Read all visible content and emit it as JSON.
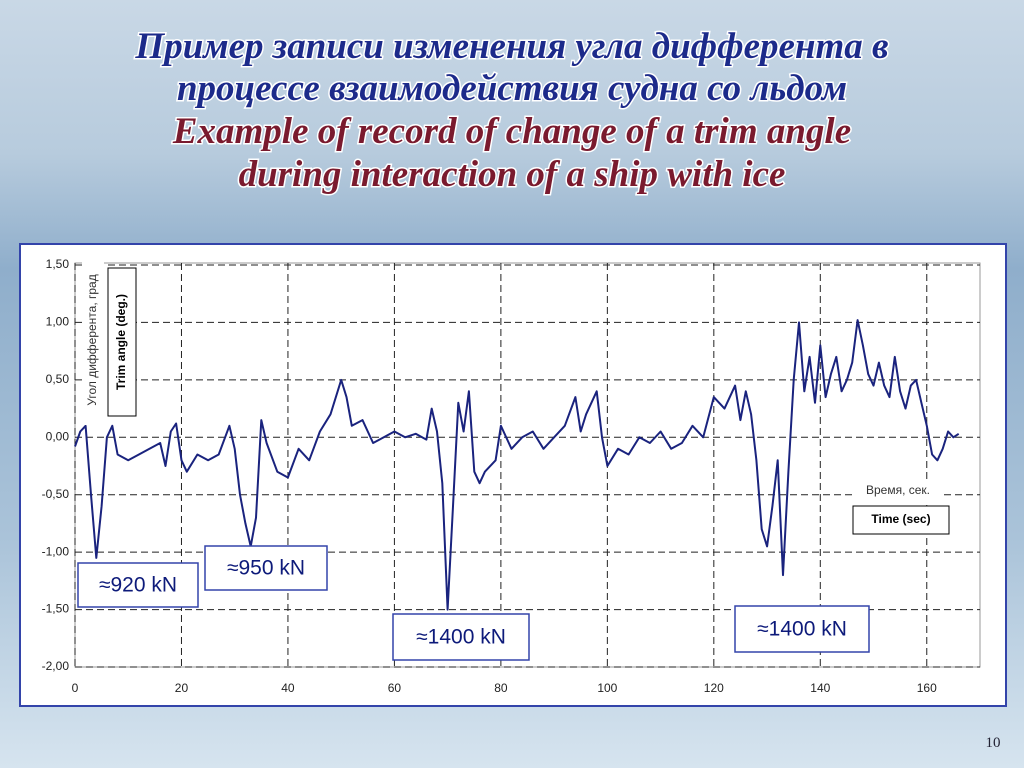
{
  "slide": {
    "title_ru": [
      "Пример записи изменения угла дифферента в",
      "процессе взаимодействия судна со льдом"
    ],
    "title_en": [
      "Example of record of change of a trim angle",
      "during interaction of a ship with ice"
    ],
    "page_number": 10
  },
  "chart_data": {
    "type": "line",
    "y_label_ru": "Угол дифферента, град",
    "y_label_en": "Trim angle (deg.)",
    "x_label_ru": "Время, сек.",
    "x_label_en": "Time (sec)",
    "annotations": [
      "≈920 kN",
      "≈950 kN",
      "≈1400 kN",
      "≈1400 kN"
    ],
    "color": "#1a237e",
    "grid": true,
    "xlim": [
      0,
      170
    ],
    "xticks": [
      0,
      20,
      40,
      60,
      80,
      100,
      120,
      140,
      160
    ],
    "ylim": [
      -2,
      1.5
    ],
    "yticks": [
      {
        "value": 1.5,
        "label": "1,50"
      },
      {
        "value": 1,
        "label": "1,00"
      },
      {
        "value": 0.5,
        "label": "0,50"
      },
      {
        "value": 0,
        "label": "0,00"
      },
      {
        "value": -0.5,
        "label": "-0,50"
      },
      {
        "value": -1,
        "label": "-1,00"
      },
      {
        "value": -1.5,
        "label": "-1,50"
      },
      {
        "value": -2,
        "label": "-2,00"
      }
    ],
    "x": [
      0,
      1,
      2,
      3,
      4,
      5,
      6,
      7,
      8,
      10,
      12,
      14,
      16,
      17,
      18,
      19,
      20,
      21,
      23,
      25,
      27,
      29,
      30,
      31,
      32,
      33,
      34,
      35,
      36,
      38,
      40,
      42,
      44,
      46,
      48,
      50,
      51,
      52,
      54,
      56,
      58,
      60,
      62,
      64,
      66,
      67,
      68,
      69,
      70,
      71,
      72,
      73,
      74,
      75,
      76,
      77,
      79,
      80,
      82,
      84,
      86,
      88,
      90,
      92,
      94,
      95,
      96,
      98,
      99,
      100,
      102,
      104,
      106,
      108,
      110,
      112,
      114,
      116,
      118,
      120,
      122,
      124,
      125,
      126,
      127,
      128,
      129,
      130,
      131,
      132,
      133,
      134,
      135,
      136,
      137,
      138,
      139,
      140,
      141,
      142,
      143,
      144,
      145,
      146,
      147,
      148,
      149,
      150,
      151,
      152,
      153,
      154,
      155,
      156,
      157,
      158,
      159,
      160,
      161,
      162,
      163,
      164,
      165,
      166
    ],
    "values": [
      -0.08,
      0.05,
      0.1,
      -0.5,
      -1.05,
      -0.6,
      0.0,
      0.1,
      -0.15,
      -0.2,
      -0.15,
      -0.1,
      -0.05,
      -0.25,
      0.05,
      0.12,
      -0.2,
      -0.3,
      -0.15,
      -0.2,
      -0.15,
      0.1,
      -0.1,
      -0.5,
      -0.75,
      -0.95,
      -0.7,
      0.15,
      -0.05,
      -0.3,
      -0.35,
      -0.1,
      -0.2,
      0.05,
      0.2,
      0.5,
      0.35,
      0.1,
      0.15,
      -0.05,
      0.0,
      0.05,
      0.0,
      0.03,
      -0.02,
      0.25,
      0.05,
      -0.4,
      -1.5,
      -0.6,
      0.3,
      0.05,
      0.4,
      -0.3,
      -0.4,
      -0.3,
      -0.2,
      0.1,
      -0.1,
      0.0,
      0.05,
      -0.1,
      0.0,
      0.1,
      0.35,
      0.05,
      0.2,
      0.4,
      0.0,
      -0.25,
      -0.1,
      -0.15,
      0.0,
      -0.05,
      0.05,
      -0.1,
      -0.05,
      0.1,
      0.0,
      0.35,
      0.25,
      0.45,
      0.15,
      0.4,
      0.2,
      -0.2,
      -0.8,
      -0.95,
      -0.6,
      -0.2,
      -1.2,
      -0.3,
      0.5,
      1.0,
      0.4,
      0.7,
      0.3,
      0.8,
      0.35,
      0.55,
      0.7,
      0.4,
      0.5,
      0.65,
      1.02,
      0.8,
      0.55,
      0.45,
      0.65,
      0.45,
      0.35,
      0.7,
      0.4,
      0.25,
      0.45,
      0.5,
      0.3,
      0.1,
      -0.15,
      -0.2,
      -0.1,
      0.05,
      0.0,
      0.03
    ]
  }
}
